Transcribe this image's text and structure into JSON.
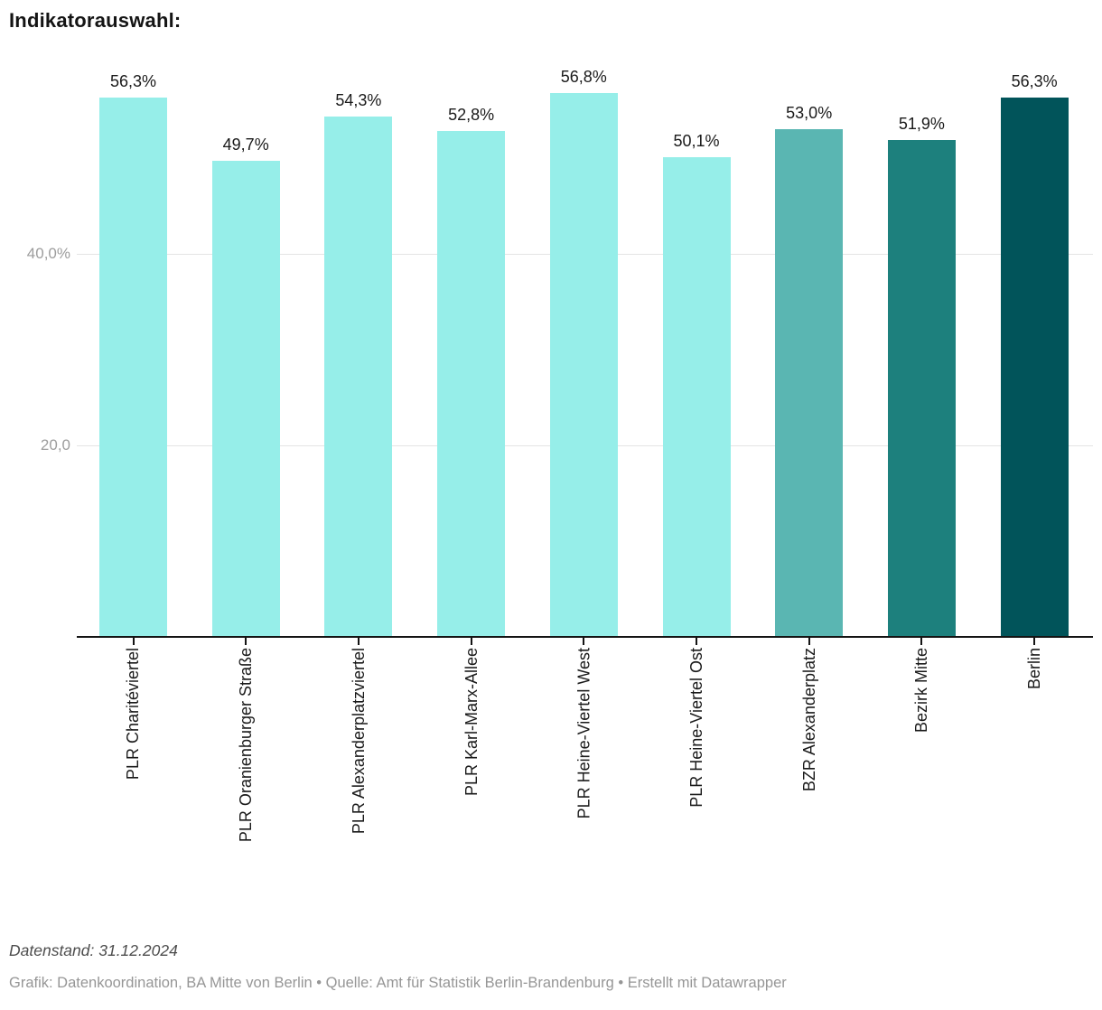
{
  "chart": {
    "title": "Indikatorauswahl:"
  },
  "chart_data": {
    "type": "bar",
    "title": "Indikatorauswahl:",
    "categories": [
      "PLR Charitéviertel",
      "PLR Oranienburger Straße",
      "PLR Alexanderplatzviertel",
      "PLR Karl-Marx-Allee",
      "PLR Heine-Viertel West",
      "PLR Heine-Viertel Ost",
      "BZR Alexanderplatz",
      "Bezirk Mitte",
      "Berlin"
    ],
    "values": [
      56.3,
      49.7,
      54.3,
      52.8,
      56.8,
      50.1,
      53.0,
      51.9,
      56.3
    ],
    "value_labels": [
      "56,3%",
      "49,7%",
      "54,3%",
      "52,8%",
      "56,8%",
      "50,1%",
      "53,0%",
      "51,9%",
      "56,3%"
    ],
    "bar_colors": [
      "#96eee9",
      "#96eee9",
      "#96eee9",
      "#96eee9",
      "#96eee9",
      "#96eee9",
      "#5ab6b2",
      "#1d807d",
      "#01545a"
    ],
    "colors": {
      "plr_light_teal": "#96eee9",
      "bzr_medium_teal": "#5ab6b2",
      "bezirk_dark_teal": "#1d807d",
      "berlin_darkest_teal": "#01545a",
      "gridline": "#e4e4e4",
      "axis": "#141414",
      "y_tick_text": "#9d9d9d"
    },
    "xlabel": "",
    "ylabel": "",
    "ylim": [
      0,
      57.5
    ],
    "grid": true,
    "legend_position": "none",
    "y_axis_ticks": [
      {
        "value": 20,
        "label": "20,0"
      },
      {
        "value": 40,
        "label": "40,0%"
      }
    ]
  },
  "footer": {
    "datenstand": "Datenstand: 31.12.2024",
    "credits": "Grafik: Datenkoordination, BA Mitte von Berlin • Quelle: Amt für Statistik Berlin-Brandenburg • Erstellt mit Datawrapper"
  }
}
